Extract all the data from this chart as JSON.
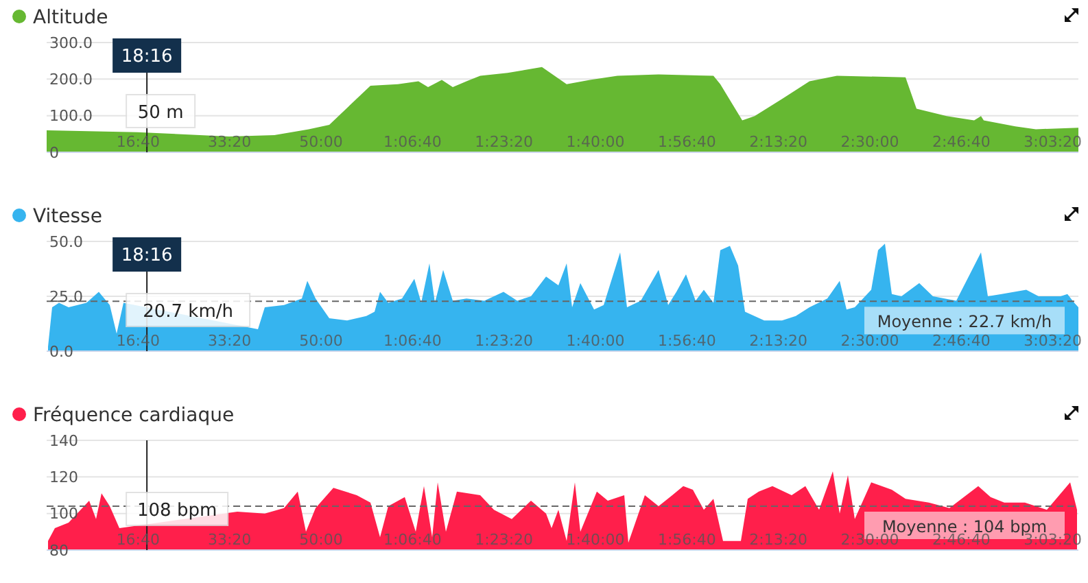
{
  "chart_data": [
    {
      "type": "area",
      "x": [
        0,
        990,
        1995,
        2490,
        2865,
        3090,
        3540,
        3840,
        4065,
        4170,
        4260,
        4320,
        4440,
        4590,
        4740,
        5040,
        5415,
        5685,
        5940,
        6240,
        6690,
        7290,
        7365,
        7605,
        7740,
        8040,
        8340,
        8640,
        9390,
        9510,
        9840,
        10140,
        10215,
        10245,
        10590,
        10815,
        11280
      ],
      "series": [
        {
          "name": "Altitude",
          "color": "#66b832",
          "values": [
            60,
            55,
            43,
            47,
            63,
            75,
            182,
            186,
            194,
            178,
            190,
            198,
            178,
            194,
            209,
            217,
            233,
            186,
            198,
            209,
            213,
            209,
            186,
            87,
            99,
            146,
            194,
            209,
            205,
            119,
            99,
            87,
            99,
            87,
            71,
            63,
            67
          ]
        }
      ],
      "xlim": [
        0,
        11280
      ],
      "xticks": [
        {
          "value": 1000,
          "label": "16:40"
        },
        {
          "value": 2000,
          "label": "33:20"
        },
        {
          "value": 3000,
          "label": "50:00"
        },
        {
          "value": 4000,
          "label": "1:06:40"
        },
        {
          "value": 5000,
          "label": "1:23:20"
        },
        {
          "value": 6000,
          "label": "1:40:00"
        },
        {
          "value": 7000,
          "label": "1:56:40"
        },
        {
          "value": 8000,
          "label": "2:13:20"
        },
        {
          "value": 9000,
          "label": "2:30:00"
        },
        {
          "value": 10000,
          "label": "2:46:40"
        },
        {
          "value": 11000,
          "label": "3:03:20"
        }
      ],
      "ylim": [
        0,
        300
      ],
      "yticks": [
        0,
        {
          "value": 100,
          "label": "100.0"
        },
        {
          "value": 200,
          "label": "200.0"
        },
        {
          "value": 300,
          "label": "300.0"
        }
      ],
      "grid": "y",
      "legend": "top left",
      "ref_lines": [
        {
          "axis": "x",
          "value": 1096,
          "color": "#222222",
          "line_style": "solid"
        }
      ],
      "annotations": [
        "18:16",
        "50 m"
      ]
    },
    {
      "type": "area",
      "x": [
        15,
        60,
        135,
        240,
        435,
        570,
        690,
        765,
        840,
        1095,
        1485,
        1890,
        2190,
        2310,
        2385,
        2595,
        2790,
        2850,
        2940,
        3090,
        3285,
        3495,
        3585,
        3645,
        3735,
        3885,
        4020,
        4095,
        4185,
        4245,
        4335,
        4440,
        4590,
        4785,
        4995,
        5145,
        5295,
        5460,
        5595,
        5685,
        5745,
        5835,
        5985,
        6090,
        6270,
        6345,
        6495,
        6690,
        6795,
        6885,
        6990,
        7095,
        7185,
        7290,
        7365,
        7470,
        7560,
        7635,
        7845,
        8040,
        8190,
        8340,
        8535,
        8670,
        8745,
        8835,
        9015,
        9090,
        9165,
        9240,
        9345,
        9540,
        9690,
        9945,
        10215,
        10290,
        10440,
        10710,
        10845,
        11085,
        11160,
        11235,
        11280
      ],
      "series": [
        {
          "name": "Vitesse",
          "color": "#36b4ef",
          "values": [
            2,
            20,
            22,
            20,
            22,
            27,
            21,
            8,
            22,
            null,
            null,
            null,
            null,
            10,
            20,
            21,
            24,
            32,
            24,
            15,
            14,
            16,
            18,
            27,
            22,
            24,
            33,
            22,
            40,
            22,
            37,
            23,
            24,
            23,
            27,
            23,
            25,
            34,
            30,
            40,
            20,
            31,
            19,
            21,
            45,
            20,
            23,
            37,
            21,
            27,
            35,
            23,
            28,
            22,
            46,
            48,
            39,
            18,
            14,
            14,
            16,
            20,
            24,
            32,
            19,
            20,
            28,
            46,
            49,
            26,
            25,
            31,
            25,
            23,
            45,
            25,
            26,
            28,
            25,
            25,
            26,
            22,
            20
          ]
        }
      ],
      "xlim": [
        0,
        11280
      ],
      "xticks": [
        {
          "value": 1000,
          "label": "16:40"
        },
        {
          "value": 2000,
          "label": "33:20"
        },
        {
          "value": 3000,
          "label": "50:00"
        },
        {
          "value": 4000,
          "label": "1:06:40"
        },
        {
          "value": 5000,
          "label": "1:23:20"
        },
        {
          "value": 6000,
          "label": "1:40:00"
        },
        {
          "value": 7000,
          "label": "1:56:40"
        },
        {
          "value": 8000,
          "label": "2:13:20"
        },
        {
          "value": 9000,
          "label": "2:30:00"
        },
        {
          "value": 10000,
          "label": "2:46:40"
        },
        {
          "value": 11000,
          "label": "3:03:20"
        }
      ],
      "ylim": [
        0,
        50
      ],
      "yticks": [
        {
          "value": 0,
          "label": "0.0"
        },
        {
          "value": 25,
          "label": "25.0"
        },
        {
          "value": 50,
          "label": "50.0"
        }
      ],
      "grid": "y",
      "legend": "top left",
      "ref_lines": [
        {
          "axis": "x",
          "value": 1096,
          "color": "#222222",
          "line_style": "solid"
        },
        {
          "axis": "y",
          "value": 22.7,
          "label": "Moyenne : 22.7 km/h",
          "color": "#666666",
          "line_style": "dashed"
        }
      ],
      "annotations": [
        "18:16",
        "20.7 km/h"
      ]
    },
    {
      "type": "area",
      "x": [
        15,
        90,
        240,
        465,
        540,
        600,
        690,
        795,
        990,
        1245,
        1590,
        1785,
        2085,
        2385,
        2595,
        2745,
        2835,
        2940,
        3135,
        3390,
        3540,
        3645,
        3735,
        3915,
        4035,
        4125,
        4215,
        4275,
        4365,
        4485,
        4740,
        4890,
        5085,
        5295,
        5460,
        5520,
        5595,
        5685,
        5775,
        5835,
        6015,
        6135,
        6315,
        6360,
        6540,
        6690,
        6840,
        6960,
        7065,
        7185,
        7290,
        7395,
        7590,
        7665,
        7785,
        7935,
        8145,
        8295,
        8445,
        8595,
        8670,
        8760,
        8835,
        9015,
        9090,
        9240,
        9390,
        9645,
        9870,
        10185,
        10320,
        10470,
        10695,
        10935,
        11085,
        11190,
        11265
      ],
      "series": [
        {
          "name": "Fréquence cardiaque",
          "color": "#ff1f4b",
          "values": [
            85,
            92,
            95,
            107,
            97,
            111,
            104,
            92,
            null,
            null,
            null,
            null,
            101,
            100,
            103,
            112,
            90,
            103,
            114,
            110,
            106,
            87,
            104,
            109,
            90,
            115,
            87,
            117,
            90,
            112,
            110,
            102,
            97,
            107,
            100,
            92,
            102,
            85,
            117,
            90,
            112,
            107,
            110,
            84,
            110,
            104,
            110,
            115,
            113,
            102,
            108,
            85,
            85,
            108,
            112,
            115,
            110,
            115,
            102,
            123,
            100,
            121,
            97,
            117,
            null,
            113,
            108,
            106,
            103,
            115,
            109,
            106,
            106,
            102,
            null,
            117,
            102
          ]
        }
      ],
      "xlim": [
        0,
        11280
      ],
      "xticks": [
        {
          "value": 1000,
          "label": "16:40"
        },
        {
          "value": 2000,
          "label": "33:20"
        },
        {
          "value": 3000,
          "label": "50:00"
        },
        {
          "value": 4000,
          "label": "1:06:40"
        },
        {
          "value": 5000,
          "label": "1:23:20"
        },
        {
          "value": 6000,
          "label": "1:40:00"
        },
        {
          "value": 7000,
          "label": "1:56:40"
        },
        {
          "value": 8000,
          "label": "2:13:20"
        },
        {
          "value": 9000,
          "label": "2:30:00"
        },
        {
          "value": 10000,
          "label": "2:46:40"
        },
        {
          "value": 11000,
          "label": "3:03:20"
        }
      ],
      "ylim": [
        80,
        140
      ],
      "yticks": [
        80,
        100,
        120,
        140
      ],
      "grid": "y",
      "legend": "top left",
      "ref_lines": [
        {
          "axis": "x",
          "value": 1096,
          "color": "#222222",
          "line_style": "solid"
        },
        {
          "axis": "y",
          "value": 104,
          "label": "Moyenne : 104 bpm",
          "color": "#666666",
          "line_style": "dashed"
        }
      ],
      "annotations": [
        "108 bpm"
      ]
    }
  ]
}
